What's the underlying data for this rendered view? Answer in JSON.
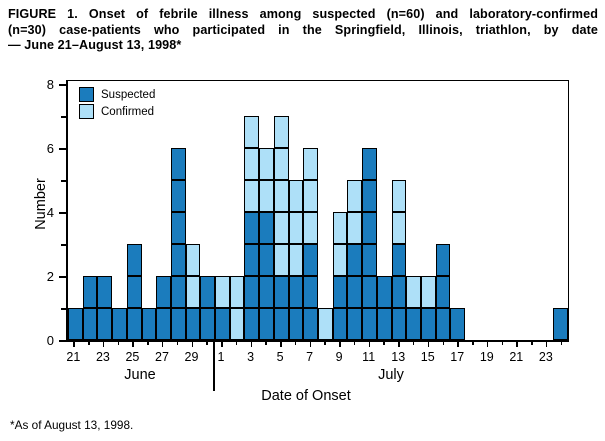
{
  "title_lines": [
    "FIGURE 1. Onset of febrile illness among suspected (n=60) and laboratory-confirmed",
    "(n=30) case-patients who participated in the Springfield, Illinois, triathlon, by date",
    "— June 21–August 13, 1998*"
  ],
  "footnote": "*As of August 13, 1998.",
  "legend": {
    "items": [
      {
        "label": "Suspected",
        "color": "#1B7CBD"
      },
      {
        "label": "Confirmed",
        "color": "#AEE0F8"
      }
    ]
  },
  "axes": {
    "y_label": "Number",
    "x_label": "Date of Onset",
    "y_major_ticks": [
      0,
      2,
      4,
      6,
      8
    ],
    "y_minor_ticks": [
      1,
      3,
      5,
      7
    ],
    "ylim": [
      0,
      8
    ],
    "month_labels": [
      "June",
      "July"
    ]
  },
  "chart_data": {
    "type": "bar",
    "stacked": true,
    "cell_value": 1,
    "series_order_bottom_to_top": [
      "Suspected",
      "Confirmed"
    ],
    "colors": {
      "suspected": "#1B7CBD",
      "confirmed": "#AEE0F8"
    },
    "totals": {
      "suspected": 60,
      "confirmed": 30
    },
    "days": [
      {
        "month": "June",
        "day": 21,
        "tick": "21",
        "suspected": 1,
        "confirmed": 0
      },
      {
        "month": "June",
        "day": 22,
        "tick": "",
        "suspected": 2,
        "confirmed": 0
      },
      {
        "month": "June",
        "day": 23,
        "tick": "23",
        "suspected": 2,
        "confirmed": 0
      },
      {
        "month": "June",
        "day": 24,
        "tick": "",
        "suspected": 1,
        "confirmed": 0
      },
      {
        "month": "June",
        "day": 25,
        "tick": "25",
        "suspected": 3,
        "confirmed": 0
      },
      {
        "month": "June",
        "day": 26,
        "tick": "",
        "suspected": 1,
        "confirmed": 0
      },
      {
        "month": "June",
        "day": 27,
        "tick": "27",
        "suspected": 2,
        "confirmed": 0
      },
      {
        "month": "June",
        "day": 28,
        "tick": "",
        "suspected": 6,
        "confirmed": 0
      },
      {
        "month": "June",
        "day": 29,
        "tick": "29",
        "suspected": 1,
        "confirmed": 2
      },
      {
        "month": "June",
        "day": 30,
        "tick": "",
        "suspected": 2,
        "confirmed": 0
      },
      {
        "month": "July",
        "day": 1,
        "tick": "1",
        "suspected": 1,
        "confirmed": 1
      },
      {
        "month": "July",
        "day": 2,
        "tick": "",
        "suspected": 0,
        "confirmed": 2
      },
      {
        "month": "July",
        "day": 3,
        "tick": "3",
        "suspected": 4,
        "confirmed": 3
      },
      {
        "month": "July",
        "day": 4,
        "tick": "",
        "suspected": 4,
        "confirmed": 2
      },
      {
        "month": "July",
        "day": 5,
        "tick": "5",
        "suspected": 2,
        "confirmed": 5
      },
      {
        "month": "July",
        "day": 6,
        "tick": "",
        "suspected": 2,
        "confirmed": 3
      },
      {
        "month": "July",
        "day": 7,
        "tick": "7",
        "suspected": 3,
        "confirmed": 3
      },
      {
        "month": "July",
        "day": 8,
        "tick": "",
        "suspected": 0,
        "confirmed": 1
      },
      {
        "month": "July",
        "day": 9,
        "tick": "9",
        "suspected": 2,
        "confirmed": 2
      },
      {
        "month": "July",
        "day": 10,
        "tick": "",
        "suspected": 3,
        "confirmed": 2
      },
      {
        "month": "July",
        "day": 11,
        "tick": "11",
        "suspected": 6,
        "confirmed": 0
      },
      {
        "month": "July",
        "day": 12,
        "tick": "",
        "suspected": 2,
        "confirmed": 0
      },
      {
        "month": "July",
        "day": 13,
        "tick": "13",
        "suspected": 3,
        "confirmed": 2
      },
      {
        "month": "July",
        "day": 14,
        "tick": "",
        "suspected": 1,
        "confirmed": 1
      },
      {
        "month": "July",
        "day": 15,
        "tick": "15",
        "suspected": 1,
        "confirmed": 1
      },
      {
        "month": "July",
        "day": 16,
        "tick": "",
        "suspected": 3,
        "confirmed": 0
      },
      {
        "month": "July",
        "day": 17,
        "tick": "17",
        "suspected": 1,
        "confirmed": 0
      },
      {
        "month": "July",
        "day": 18,
        "tick": "",
        "suspected": 0,
        "confirmed": 0
      },
      {
        "month": "July",
        "day": 19,
        "tick": "19",
        "suspected": 0,
        "confirmed": 0
      },
      {
        "month": "July",
        "day": 20,
        "tick": "",
        "suspected": 0,
        "confirmed": 0
      },
      {
        "month": "July",
        "day": 21,
        "tick": "21",
        "suspected": 0,
        "confirmed": 0
      },
      {
        "month": "July",
        "day": 22,
        "tick": "",
        "suspected": 0,
        "confirmed": 0
      },
      {
        "month": "July",
        "day": 23,
        "tick": "23",
        "suspected": 0,
        "confirmed": 0
      },
      {
        "month": "July",
        "day": 24,
        "tick": "",
        "suspected": 1,
        "confirmed": 0
      }
    ]
  }
}
